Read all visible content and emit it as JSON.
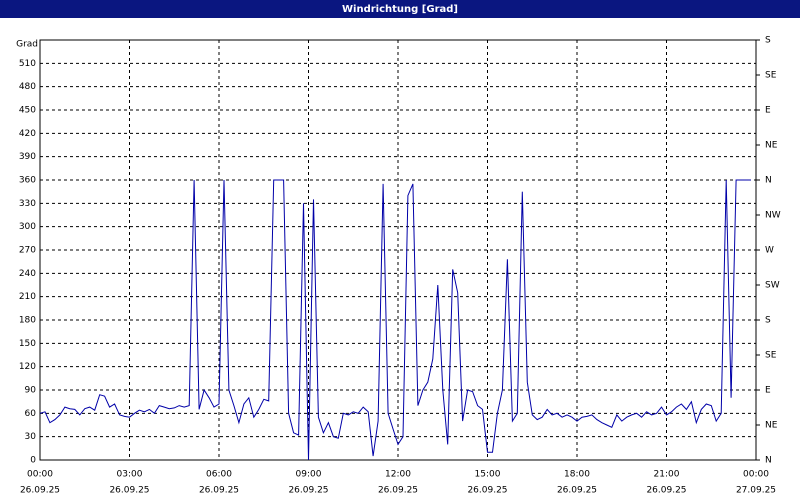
{
  "chart_data": {
    "type": "line",
    "title": "Windrichtung [Grad]",
    "y_label": "Grad",
    "xlim": [
      0,
      1440
    ],
    "xticks": [
      {
        "value": 0,
        "label": "00:00"
      },
      {
        "value": 180,
        "label": "03:00"
      },
      {
        "value": 360,
        "label": "06:00"
      },
      {
        "value": 540,
        "label": "09:00"
      },
      {
        "value": 720,
        "label": "12:00"
      },
      {
        "value": 900,
        "label": "15:00"
      },
      {
        "value": 1080,
        "label": "18:00"
      },
      {
        "value": 1260,
        "label": "21:00"
      },
      {
        "value": 1440,
        "label": "00:00"
      }
    ],
    "xtick_dates": [
      "26.09.25",
      "26.09.25",
      "26.09.25",
      "26.09.25",
      "26.09.25",
      "26.09.25",
      "26.09.25",
      "26.09.25",
      "27.09.25"
    ],
    "ylim": [
      0,
      540
    ],
    "yticks": [
      0,
      30,
      60,
      90,
      120,
      150,
      180,
      210,
      240,
      270,
      300,
      330,
      360,
      390,
      420,
      450,
      480,
      510
    ],
    "y2lim": [
      0,
      540
    ],
    "y2ticks": [
      {
        "value": 0,
        "label": "N"
      },
      {
        "value": 45,
        "label": "NE"
      },
      {
        "value": 90,
        "label": "E"
      },
      {
        "value": 135,
        "label": "SE"
      },
      {
        "value": 180,
        "label": "S"
      },
      {
        "value": 225,
        "label": "SW"
      },
      {
        "value": 270,
        "label": "W"
      },
      {
        "value": 315,
        "label": "NW"
      },
      {
        "value": 360,
        "label": "N"
      },
      {
        "value": 405,
        "label": "NE"
      },
      {
        "value": 450,
        "label": "E"
      },
      {
        "value": 495,
        "label": "SE"
      },
      {
        "value": 540,
        "label": "S"
      }
    ],
    "grid": true,
    "color": "#0000a8",
    "x": [
      0,
      10,
      20,
      30,
      40,
      50,
      60,
      70,
      80,
      90,
      100,
      110,
      120,
      130,
      140,
      150,
      160,
      170,
      180,
      190,
      200,
      210,
      220,
      230,
      240,
      250,
      260,
      270,
      280,
      290,
      300,
      310,
      320,
      330,
      340,
      350,
      360,
      370,
      380,
      390,
      400,
      410,
      420,
      430,
      440,
      450,
      460,
      470,
      480,
      490,
      500,
      510,
      520,
      530,
      540,
      550,
      560,
      570,
      580,
      590,
      600,
      610,
      620,
      630,
      640,
      650,
      660,
      670,
      680,
      690,
      700,
      710,
      720,
      730,
      740,
      750,
      760,
      770,
      780,
      790,
      800,
      810,
      820,
      830,
      840,
      850,
      860,
      870,
      880,
      890,
      900,
      910,
      920,
      930,
      940,
      950,
      960,
      970,
      980,
      990,
      1000,
      1010,
      1020,
      1030,
      1040,
      1050,
      1060,
      1070,
      1080,
      1090,
      1100,
      1110,
      1120,
      1130,
      1140,
      1150,
      1160,
      1170,
      1180,
      1190,
      1200,
      1210,
      1220,
      1230,
      1240,
      1250,
      1260,
      1270,
      1280,
      1290,
      1300,
      1310,
      1320,
      1330,
      1340,
      1350,
      1360,
      1370,
      1380,
      1390,
      1400,
      1410,
      1420,
      1430
    ],
    "values": [
      60,
      62,
      48,
      52,
      58,
      68,
      66,
      65,
      58,
      66,
      68,
      64,
      84,
      82,
      68,
      72,
      58,
      56,
      55,
      60,
      64,
      62,
      65,
      60,
      70,
      68,
      66,
      67,
      70,
      68,
      70,
      360,
      65,
      90,
      80,
      68,
      72,
      360,
      90,
      70,
      48,
      72,
      80,
      55,
      65,
      78,
      76,
      360,
      360,
      360,
      60,
      35,
      32,
      330,
      0,
      335,
      55,
      35,
      48,
      30,
      28,
      60,
      58,
      62,
      60,
      68,
      62,
      5,
      50,
      355,
      60,
      40,
      20,
      30,
      340,
      355,
      70,
      90,
      100,
      130,
      225,
      90,
      20,
      245,
      215,
      50,
      90,
      88,
      70,
      65,
      10,
      10,
      60,
      90,
      258,
      50,
      60,
      345,
      100,
      58,
      52,
      55,
      65,
      58,
      60,
      55,
      58,
      55,
      50,
      55,
      56,
      58,
      52,
      48,
      45,
      42,
      58,
      50,
      55,
      58,
      60,
      55,
      62,
      58,
      60,
      68,
      58,
      62,
      68,
      72,
      65,
      75,
      48,
      65,
      72,
      70,
      50,
      60,
      360,
      80,
      360,
      360,
      360,
      360
    ]
  }
}
